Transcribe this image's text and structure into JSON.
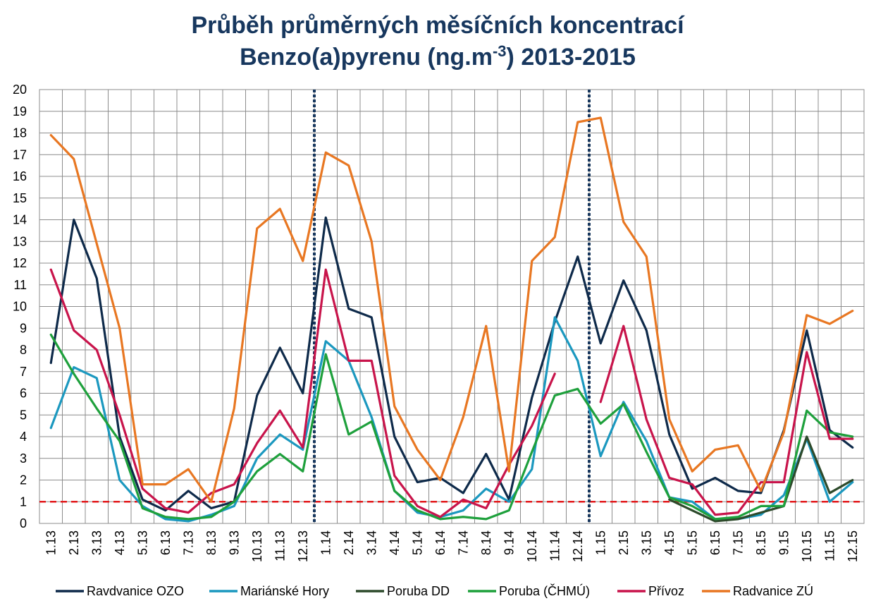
{
  "chart_data": {
    "type": "line",
    "title_line1": "Průběh průměrných měsíčních koncentrací",
    "title_line2_pre": "Benzo(a)pyrenu (ng.m",
    "title_line2_sup": "-3",
    "title_line2_post": ") 2013-2015",
    "ylim": [
      0,
      20
    ],
    "y_ticks": [
      0,
      1,
      2,
      3,
      4,
      5,
      6,
      7,
      8,
      9,
      10,
      11,
      12,
      13,
      14,
      15,
      16,
      17,
      18,
      19,
      20
    ],
    "grid": true,
    "legend_position": "bottom",
    "categories": [
      "1.13",
      "2.13",
      "3.13",
      "4.13",
      "5.13",
      "6.13",
      "7.13",
      "8.13",
      "9.13",
      "10.13",
      "11.13",
      "12.13",
      "1.14",
      "2.14",
      "3.14",
      "4.14",
      "5.14",
      "6.14",
      "7.14",
      "8.14",
      "9.14",
      "10.14",
      "11.14",
      "12.14",
      "1.15",
      "2.15",
      "3.15",
      "4.15",
      "5.15",
      "6.15",
      "7.15",
      "8.15",
      "9.15",
      "10.15",
      "11.15",
      "12.15"
    ],
    "limit_line": {
      "value": 1,
      "color": "#e31a1c"
    },
    "year_separators": [
      11.5,
      23.5
    ],
    "series": [
      {
        "name": "Ravdvanice OZO",
        "color": "#0e2a4a",
        "values": [
          7.4,
          14.0,
          11.3,
          4.0,
          1.1,
          0.6,
          1.5,
          0.7,
          1.0,
          5.9,
          8.1,
          6.0,
          14.1,
          9.9,
          9.5,
          4.0,
          1.9,
          2.1,
          1.4,
          3.2,
          1.1,
          5.8,
          9.3,
          12.3,
          8.3,
          11.2,
          8.9,
          4.1,
          1.6,
          2.1,
          1.5,
          1.4,
          4.3,
          8.9,
          4.3,
          3.5
        ]
      },
      {
        "name": "Mariánské Hory",
        "color": "#1b98bf",
        "values": [
          4.4,
          7.2,
          6.7,
          2.0,
          0.8,
          0.2,
          0.1,
          0.4,
          0.8,
          3.0,
          4.1,
          3.4,
          8.4,
          7.5,
          4.9,
          1.5,
          0.5,
          0.3,
          0.6,
          1.6,
          1.0,
          2.5,
          9.5,
          7.5,
          3.1,
          5.6,
          3.8,
          1.2,
          1.0,
          0.2,
          0.2,
          0.4,
          1.3,
          3.9,
          1.0,
          1.9
        ]
      },
      {
        "name": "Poruba DD",
        "color": "#2d4a2b",
        "values": [
          null,
          null,
          null,
          null,
          null,
          null,
          null,
          null,
          null,
          null,
          null,
          null,
          null,
          null,
          null,
          null,
          null,
          null,
          null,
          null,
          null,
          null,
          null,
          null,
          null,
          null,
          null,
          1.1,
          0.6,
          0.1,
          0.2,
          0.5,
          0.8,
          4.0,
          1.4,
          2.0
        ]
      },
      {
        "name": "Poruba (ČHMÚ)",
        "color": "#1ea03c",
        "values": [
          8.7,
          6.9,
          5.3,
          3.8,
          0.7,
          0.3,
          0.2,
          0.3,
          1.0,
          2.4,
          3.2,
          2.4,
          7.8,
          4.1,
          4.7,
          1.5,
          0.6,
          0.2,
          0.3,
          0.2,
          0.6,
          3.3,
          5.9,
          6.2,
          4.6,
          5.5,
          3.3,
          1.2,
          0.8,
          0.2,
          0.3,
          0.8,
          0.8,
          5.2,
          4.2,
          4.0
        ]
      },
      {
        "name": "Přívoz",
        "color": "#c8144b",
        "values": [
          11.7,
          8.9,
          8.0,
          5.0,
          1.6,
          0.7,
          0.5,
          1.4,
          1.8,
          3.7,
          5.2,
          3.5,
          11.7,
          7.5,
          7.5,
          2.2,
          0.8,
          0.3,
          1.1,
          0.7,
          2.7,
          4.5,
          6.9,
          null,
          5.6,
          9.1,
          4.8,
          2.1,
          1.8,
          0.4,
          0.5,
          1.9,
          1.9,
          7.9,
          3.9,
          3.9
        ]
      },
      {
        "name": "Radvanice ZÚ",
        "color": "#e87722",
        "values": [
          17.9,
          16.8,
          12.9,
          9.0,
          1.8,
          1.8,
          2.5,
          1.0,
          5.3,
          13.6,
          14.5,
          12.1,
          17.1,
          16.5,
          13.0,
          5.4,
          3.4,
          2.0,
          4.9,
          9.1,
          2.4,
          12.1,
          13.2,
          18.5,
          18.7,
          13.9,
          12.3,
          4.8,
          2.4,
          3.4,
          3.6,
          1.5,
          4.2,
          9.6,
          9.2,
          9.8
        ]
      }
    ]
  }
}
